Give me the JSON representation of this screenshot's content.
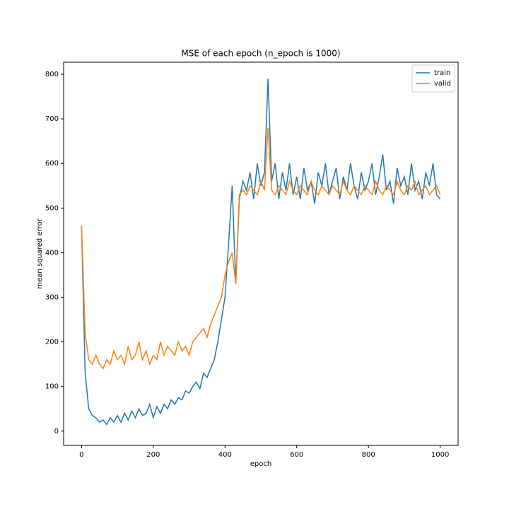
{
  "chart_data": {
    "type": "line",
    "title": "MSE of each epoch (n_epoch is 1000)",
    "x_label": "epoch",
    "y_label": "mean squared error",
    "x": [
      0,
      10,
      20,
      30,
      40,
      50,
      60,
      70,
      80,
      90,
      100,
      110,
      120,
      130,
      140,
      150,
      160,
      170,
      180,
      190,
      200,
      210,
      220,
      230,
      240,
      250,
      260,
      270,
      280,
      290,
      300,
      310,
      320,
      330,
      340,
      350,
      360,
      370,
      380,
      390,
      400,
      410,
      420,
      430,
      440,
      450,
      460,
      470,
      480,
      490,
      500,
      510,
      520,
      530,
      540,
      550,
      560,
      570,
      580,
      590,
      600,
      610,
      620,
      630,
      640,
      650,
      660,
      670,
      680,
      690,
      700,
      710,
      720,
      730,
      740,
      750,
      760,
      770,
      780,
      790,
      800,
      810,
      820,
      830,
      840,
      850,
      860,
      870,
      880,
      890,
      900,
      910,
      920,
      930,
      940,
      950,
      960,
      970,
      980,
      990,
      1000
    ],
    "series": [
      {
        "name": "train",
        "color": "#1f77b4",
        "values": [
          460,
          130,
          50,
          35,
          30,
          20,
          25,
          15,
          30,
          20,
          35,
          20,
          40,
          25,
          45,
          30,
          50,
          35,
          40,
          60,
          30,
          55,
          40,
          60,
          50,
          70,
          60,
          75,
          70,
          90,
          85,
          100,
          110,
          95,
          130,
          120,
          140,
          160,
          200,
          250,
          300,
          420,
          550,
          330,
          520,
          560,
          540,
          580,
          520,
          600,
          550,
          580,
          790,
          560,
          600,
          520,
          580,
          540,
          600,
          530,
          570,
          520,
          590,
          540,
          560,
          510,
          580,
          550,
          600,
          530,
          560,
          590,
          520,
          570,
          540,
          600,
          550,
          520,
          580,
          540,
          560,
          600,
          530,
          570,
          620,
          540,
          560,
          510,
          590,
          550,
          570,
          530,
          600,
          540,
          560,
          520,
          580,
          550,
          600,
          530,
          520
        ]
      },
      {
        "name": "valid",
        "color": "#ff7f0e",
        "values": [
          460,
          220,
          160,
          150,
          170,
          150,
          140,
          160,
          150,
          180,
          160,
          170,
          150,
          190,
          160,
          170,
          200,
          160,
          180,
          150,
          170,
          160,
          200,
          170,
          190,
          180,
          170,
          200,
          180,
          190,
          170,
          200,
          210,
          220,
          230,
          210,
          240,
          260,
          280,
          300,
          350,
          380,
          400,
          330,
          530,
          540,
          530,
          550,
          540,
          530,
          560,
          540,
          680,
          540,
          530,
          550,
          540,
          530,
          560,
          540,
          530,
          550,
          540,
          530,
          560,
          540,
          530,
          550,
          540,
          530,
          550,
          540,
          530,
          560,
          540,
          530,
          550,
          540,
          530,
          550,
          540,
          530,
          560,
          540,
          530,
          550,
          540,
          530,
          560,
          540,
          530,
          550,
          540,
          560,
          530,
          540,
          550,
          530,
          540,
          550,
          530
        ]
      }
    ],
    "xlim": [
      -50,
      1050
    ],
    "ylim": [
      -32,
      827
    ],
    "xticks": [
      0,
      200,
      400,
      600,
      800,
      1000
    ],
    "yticks": [
      0,
      100,
      200,
      300,
      400,
      500,
      600,
      700,
      800
    ],
    "legend": "upper right"
  }
}
